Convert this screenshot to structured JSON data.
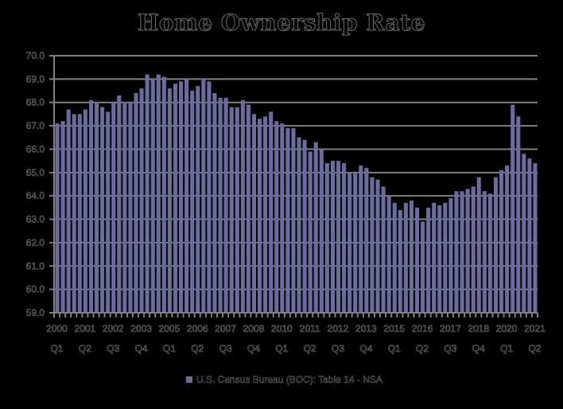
{
  "chart_data": {
    "type": "bar",
    "title": "Home Ownership Rate",
    "xlabel": "",
    "ylabel": "",
    "ylim": [
      59.0,
      70.0
    ],
    "yticks": [
      "59.0",
      "60.0",
      "61.0",
      "62.0",
      "63.0",
      "64.0",
      "65.0",
      "66.0",
      "67.0",
      "68.0",
      "69.0",
      "70.0"
    ],
    "grid": true,
    "legend_position": "bottom",
    "categories": [
      "2000 Q1",
      "2000 Q2",
      "2000 Q3",
      "2000 Q4",
      "2001 Q1",
      "2001 Q2",
      "2001 Q3",
      "2001 Q4",
      "2002 Q1",
      "2002 Q2",
      "2002 Q3",
      "2002 Q4",
      "2003 Q1",
      "2003 Q2",
      "2003 Q3",
      "2003 Q4",
      "2004 Q1",
      "2004 Q2",
      "2004 Q3",
      "2004 Q4",
      "2005 Q1",
      "2005 Q2",
      "2005 Q3",
      "2005 Q4",
      "2006 Q1",
      "2006 Q2",
      "2006 Q3",
      "2006 Q4",
      "2007 Q1",
      "2007 Q2",
      "2007 Q3",
      "2007 Q4",
      "2008 Q1",
      "2008 Q2",
      "2008 Q3",
      "2008 Q4",
      "2009 Q1",
      "2009 Q2",
      "2009 Q3",
      "2009 Q4",
      "2010 Q1",
      "2010 Q2",
      "2010 Q3",
      "2010 Q4",
      "2011 Q1",
      "2011 Q2",
      "2011 Q3",
      "2011 Q4",
      "2012 Q1",
      "2012 Q2",
      "2012 Q3",
      "2012 Q4",
      "2013 Q1",
      "2013 Q2",
      "2013 Q3",
      "2013 Q4",
      "2014 Q1",
      "2014 Q2",
      "2014 Q3",
      "2014 Q4",
      "2015 Q1",
      "2015 Q2",
      "2015 Q3",
      "2015 Q4",
      "2016 Q1",
      "2016 Q2",
      "2016 Q3",
      "2016 Q4",
      "2017 Q1",
      "2017 Q2",
      "2017 Q3",
      "2017 Q4",
      "2018 Q1",
      "2018 Q2",
      "2018 Q3",
      "2018 Q4",
      "2019 Q1",
      "2019 Q2",
      "2019 Q3",
      "2019 Q4",
      "2020 Q1",
      "2020 Q2",
      "2020 Q3",
      "2020 Q4",
      "2021 Q1",
      "2021 Q2"
    ],
    "series": [
      {
        "name": "U.S. Census Bureau (BOC): Table 14 - NSA",
        "color": "#6b6b9e",
        "values": [
          67.1,
          67.2,
          67.7,
          67.5,
          67.5,
          67.7,
          68.1,
          68.0,
          67.8,
          67.6,
          68.0,
          68.3,
          68.0,
          68.0,
          68.4,
          68.6,
          69.2,
          69.0,
          69.2,
          69.1,
          68.6,
          68.8,
          68.9,
          69.0,
          68.5,
          68.7,
          69.0,
          68.9,
          68.4,
          68.2,
          68.2,
          67.8,
          67.8,
          68.1,
          67.9,
          67.5,
          67.3,
          67.4,
          67.6,
          67.2,
          67.1,
          66.9,
          66.9,
          66.5,
          66.4,
          65.9,
          66.3,
          66.0,
          65.4,
          65.5,
          65.5,
          65.4,
          65.0,
          65.0,
          65.3,
          65.2,
          64.8,
          64.7,
          64.4,
          64.0,
          63.7,
          63.4,
          63.7,
          63.8,
          63.5,
          62.9,
          63.5,
          63.7,
          63.6,
          63.7,
          63.9,
          64.2,
          64.2,
          64.3,
          64.4,
          64.8,
          64.2,
          64.1,
          64.8,
          65.1,
          65.3,
          67.9,
          67.4,
          65.8,
          65.6,
          65.4
        ]
      }
    ],
    "x_tick_labels": [
      {
        "index": 0,
        "year": "2000",
        "quarter": "Q1"
      },
      {
        "index": 5,
        "year": "2001",
        "quarter": "Q2"
      },
      {
        "index": 10,
        "year": "2002",
        "quarter": "Q3"
      },
      {
        "index": 15,
        "year": "2003",
        "quarter": "Q4"
      },
      {
        "index": 20,
        "year": "2005",
        "quarter": "Q1"
      },
      {
        "index": 25,
        "year": "2006",
        "quarter": "Q2"
      },
      {
        "index": 30,
        "year": "2007",
        "quarter": "Q3"
      },
      {
        "index": 35,
        "year": "2008",
        "quarter": "Q4"
      },
      {
        "index": 40,
        "year": "2010",
        "quarter": "Q1"
      },
      {
        "index": 45,
        "year": "2011",
        "quarter": "Q2"
      },
      {
        "index": 50,
        "year": "2012",
        "quarter": "Q3"
      },
      {
        "index": 55,
        "year": "2013",
        "quarter": "Q4"
      },
      {
        "index": 60,
        "year": "2015",
        "quarter": "Q1"
      },
      {
        "index": 65,
        "year": "2016",
        "quarter": "Q2"
      },
      {
        "index": 70,
        "year": "2017",
        "quarter": "Q3"
      },
      {
        "index": 75,
        "year": "2018",
        "quarter": "Q4"
      },
      {
        "index": 80,
        "year": "2020",
        "quarter": "Q1"
      },
      {
        "index": 85,
        "year": "2021",
        "quarter": "Q2"
      }
    ]
  },
  "legend": {
    "label": "U.S. Census Bureau (BOC): Table 14 - NSA"
  },
  "colors": {
    "background": "#000000",
    "bar": "#6b6b9e",
    "axis": "#808080",
    "grid": "#7f7f7f",
    "text_outline": "#6e6e6e"
  }
}
